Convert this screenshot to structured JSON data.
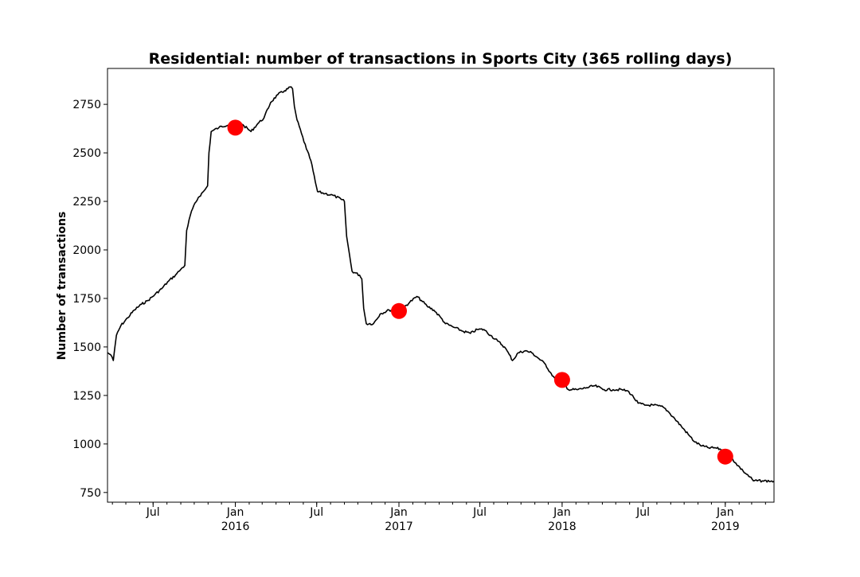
{
  "chart_data": {
    "type": "line",
    "title": "Residential: number of transactions in Sports City (365 rolling days)",
    "xlabel": "",
    "ylabel": "Number of transactions",
    "ylim": [
      700,
      2935
    ],
    "xlim": [
      "2015-03-21",
      "2019-04-20"
    ],
    "y_ticks": [
      750,
      1000,
      1250,
      1500,
      1750,
      2000,
      2250,
      2500,
      2750
    ],
    "x_major_ticks": [
      {
        "date": "2015-07-01",
        "label": "Jul",
        "year_label": ""
      },
      {
        "date": "2016-01-01",
        "label": "Jan",
        "year_label": "2016"
      },
      {
        "date": "2016-07-01",
        "label": "Jul",
        "year_label": ""
      },
      {
        "date": "2017-01-01",
        "label": "Jan",
        "year_label": "2017"
      },
      {
        "date": "2017-07-01",
        "label": "Jul",
        "year_label": ""
      },
      {
        "date": "2018-01-01",
        "label": "Jan",
        "year_label": "2018"
      },
      {
        "date": "2018-07-01",
        "label": "Jul",
        "year_label": ""
      },
      {
        "date": "2019-01-01",
        "label": "Jan",
        "year_label": "2019"
      }
    ],
    "grid": false,
    "legend": "none",
    "line_color": "#000000",
    "marker_color": "#ff0000",
    "series": [
      {
        "points": [
          [
            "2015-03-21",
            1470
          ],
          [
            "2015-03-28",
            1460
          ],
          [
            "2015-04-03",
            1430
          ],
          [
            "2015-04-06",
            1490
          ],
          [
            "2015-04-10",
            1560
          ],
          [
            "2015-04-20",
            1610
          ],
          [
            "2015-05-05",
            1650
          ],
          [
            "2015-05-20",
            1690
          ],
          [
            "2015-06-05",
            1720
          ],
          [
            "2015-06-20",
            1740
          ],
          [
            "2015-07-05",
            1770
          ],
          [
            "2015-07-20",
            1800
          ],
          [
            "2015-08-05",
            1840
          ],
          [
            "2015-08-20",
            1870
          ],
          [
            "2015-09-01",
            1900
          ],
          [
            "2015-09-10",
            1920
          ],
          [
            "2015-09-14",
            2100
          ],
          [
            "2015-09-25",
            2200
          ],
          [
            "2015-10-10",
            2270
          ],
          [
            "2015-10-25",
            2310
          ],
          [
            "2015-10-31",
            2330
          ],
          [
            "2015-11-03",
            2500
          ],
          [
            "2015-11-08",
            2610
          ],
          [
            "2015-11-25",
            2630
          ],
          [
            "2015-12-20",
            2650
          ],
          [
            "2016-01-05",
            2660
          ],
          [
            "2016-01-20",
            2640
          ],
          [
            "2016-02-05",
            2610
          ],
          [
            "2016-02-20",
            2650
          ],
          [
            "2016-03-05",
            2680
          ],
          [
            "2016-03-20",
            2760
          ],
          [
            "2016-04-05",
            2800
          ],
          [
            "2016-04-20",
            2820
          ],
          [
            "2016-05-05",
            2840
          ],
          [
            "2016-05-08",
            2830
          ],
          [
            "2016-05-12",
            2740
          ],
          [
            "2016-05-18",
            2670
          ],
          [
            "2016-05-28",
            2600
          ],
          [
            "2016-06-08",
            2520
          ],
          [
            "2016-06-18",
            2460
          ],
          [
            "2016-06-28",
            2350
          ],
          [
            "2016-07-03",
            2300
          ],
          [
            "2016-07-20",
            2290
          ],
          [
            "2016-08-08",
            2280
          ],
          [
            "2016-08-25",
            2260
          ],
          [
            "2016-09-01",
            2250
          ],
          [
            "2016-09-06",
            2070
          ],
          [
            "2016-09-18",
            1890
          ],
          [
            "2016-10-05",
            1870
          ],
          [
            "2016-10-10",
            1850
          ],
          [
            "2016-10-14",
            1700
          ],
          [
            "2016-10-20",
            1620
          ],
          [
            "2016-11-05",
            1620
          ],
          [
            "2016-11-20",
            1670
          ],
          [
            "2016-12-10",
            1690
          ],
          [
            "2016-12-25",
            1690
          ],
          [
            "2017-01-10",
            1700
          ],
          [
            "2017-01-25",
            1730
          ],
          [
            "2017-02-10",
            1760
          ],
          [
            "2017-02-20",
            1740
          ],
          [
            "2017-03-05",
            1710
          ],
          [
            "2017-03-20",
            1690
          ],
          [
            "2017-04-05",
            1650
          ],
          [
            "2017-04-15",
            1620
          ],
          [
            "2017-05-05",
            1600
          ],
          [
            "2017-05-25",
            1580
          ],
          [
            "2017-06-10",
            1570
          ],
          [
            "2017-06-25",
            1590
          ],
          [
            "2017-07-10",
            1590
          ],
          [
            "2017-07-25",
            1560
          ],
          [
            "2017-08-10",
            1530
          ],
          [
            "2017-08-25",
            1500
          ],
          [
            "2017-09-05",
            1460
          ],
          [
            "2017-09-12",
            1430
          ],
          [
            "2017-09-25",
            1470
          ],
          [
            "2017-10-10",
            1480
          ],
          [
            "2017-10-25",
            1470
          ],
          [
            "2017-11-10",
            1440
          ],
          [
            "2017-11-25",
            1410
          ],
          [
            "2017-12-05",
            1370
          ],
          [
            "2017-12-15",
            1340
          ],
          [
            "2018-01-01",
            1330
          ],
          [
            "2018-01-15",
            1280
          ],
          [
            "2018-02-05",
            1280
          ],
          [
            "2018-02-25",
            1290
          ],
          [
            "2018-03-15",
            1300
          ],
          [
            "2018-04-05",
            1280
          ],
          [
            "2018-04-25",
            1280
          ],
          [
            "2018-05-15",
            1280
          ],
          [
            "2018-05-30",
            1270
          ],
          [
            "2018-06-10",
            1240
          ],
          [
            "2018-06-20",
            1210
          ],
          [
            "2018-07-05",
            1200
          ],
          [
            "2018-07-25",
            1200
          ],
          [
            "2018-08-15",
            1190
          ],
          [
            "2018-08-25",
            1170
          ],
          [
            "2018-09-10",
            1130
          ],
          [
            "2018-09-25",
            1090
          ],
          [
            "2018-10-10",
            1050
          ],
          [
            "2018-10-25",
            1010
          ],
          [
            "2018-11-10",
            990
          ],
          [
            "2018-11-25",
            980
          ],
          [
            "2018-12-10",
            980
          ],
          [
            "2018-12-25",
            970
          ],
          [
            "2019-01-10",
            940
          ],
          [
            "2019-01-25",
            900
          ],
          [
            "2019-02-10",
            860
          ],
          [
            "2019-02-25",
            830
          ],
          [
            "2019-03-05",
            810
          ],
          [
            "2019-03-25",
            810
          ],
          [
            "2019-04-20",
            808
          ]
        ]
      }
    ],
    "markers": [
      [
        "2016-01-01",
        2630
      ],
      [
        "2017-01-01",
        1685
      ],
      [
        "2018-01-01",
        1330
      ],
      [
        "2019-01-01",
        935
      ]
    ]
  }
}
